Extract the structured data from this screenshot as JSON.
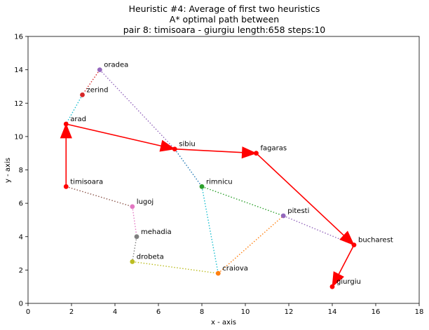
{
  "chart_data": {
    "type": "scatter",
    "title_lines": [
      "Heuristic #4: Average of first two heuristics",
      "A* optimal path between",
      "pair 8: timisoara - giurgiu length:658 steps:10"
    ],
    "xlabel": "x - axis",
    "ylabel": "y - axis",
    "xlim": [
      0,
      18
    ],
    "ylim": [
      0,
      16
    ],
    "xticks": [
      0,
      2,
      4,
      6,
      8,
      10,
      12,
      14,
      16,
      18
    ],
    "yticks": [
      0,
      2,
      4,
      6,
      8,
      10,
      12,
      14,
      16
    ],
    "grid": false,
    "cities": [
      {
        "name": "oradea",
        "x": 3.3,
        "y": 14.0,
        "color": "#9467bd"
      },
      {
        "name": "zerind",
        "x": 2.5,
        "y": 12.5,
        "color": "#d62728"
      },
      {
        "name": "arad",
        "x": 1.75,
        "y": 10.75,
        "color": "#ff0000"
      },
      {
        "name": "sibiu",
        "x": 6.75,
        "y": 9.25,
        "color": "#ff0000"
      },
      {
        "name": "fagaras",
        "x": 10.5,
        "y": 9.0,
        "color": "#ff0000"
      },
      {
        "name": "rimnicu",
        "x": 8.0,
        "y": 7.0,
        "color": "#2ca02c"
      },
      {
        "name": "timisoara",
        "x": 1.75,
        "y": 7.0,
        "color": "#ff0000"
      },
      {
        "name": "lugoj",
        "x": 4.8,
        "y": 5.8,
        "color": "#e377c2"
      },
      {
        "name": "mehadia",
        "x": 5.0,
        "y": 4.0,
        "color": "#7f7f7f"
      },
      {
        "name": "drobeta",
        "x": 4.8,
        "y": 2.5,
        "color": "#bcbd22"
      },
      {
        "name": "craiova",
        "x": 8.75,
        "y": 1.8,
        "color": "#ff7f0e"
      },
      {
        "name": "pitesti",
        "x": 11.75,
        "y": 5.25,
        "color": "#9467bd"
      },
      {
        "name": "bucharest",
        "x": 15.0,
        "y": 3.5,
        "color": "#ff0000"
      },
      {
        "name": "giurgiu",
        "x": 14.0,
        "y": 1.0,
        "color": "#ff0000"
      }
    ],
    "edges": [
      {
        "from": "oradea",
        "to": "zerind",
        "color": "#d62728"
      },
      {
        "from": "zerind",
        "to": "arad",
        "color": "#17becf"
      },
      {
        "from": "oradea",
        "to": "sibiu",
        "color": "#9467bd"
      },
      {
        "from": "arad",
        "to": "timisoara",
        "color": "#8c564b"
      },
      {
        "from": "timisoara",
        "to": "lugoj",
        "color": "#8c564b"
      },
      {
        "from": "lugoj",
        "to": "mehadia",
        "color": "#e377c2"
      },
      {
        "from": "mehadia",
        "to": "drobeta",
        "color": "#7f7f7f"
      },
      {
        "from": "drobeta",
        "to": "craiova",
        "color": "#bcbd22"
      },
      {
        "from": "sibiu",
        "to": "rimnicu",
        "color": "#1f77b4"
      },
      {
        "from": "rimnicu",
        "to": "craiova",
        "color": "#17becf"
      },
      {
        "from": "rimnicu",
        "to": "pitesti",
        "color": "#2ca02c"
      },
      {
        "from": "craiova",
        "to": "pitesti",
        "color": "#ff7f0e"
      },
      {
        "from": "pitesti",
        "to": "bucharest",
        "color": "#9467bd"
      }
    ],
    "path": [
      "timisoara",
      "arad",
      "sibiu",
      "fagaras",
      "bucharest",
      "giurgiu"
    ],
    "path_color": "#ff0000"
  }
}
